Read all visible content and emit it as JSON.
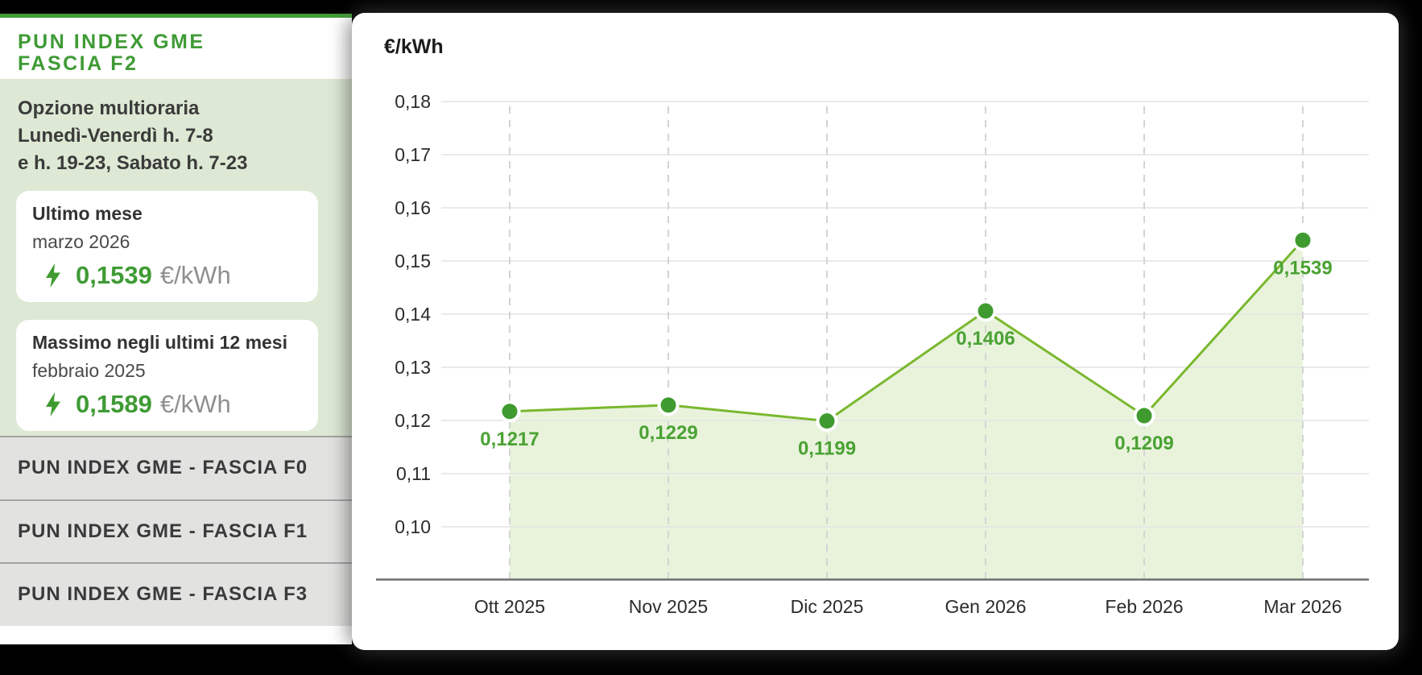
{
  "colors": {
    "accent_green": "#3f9b35",
    "label_green": "#4aa233",
    "line_green": "#7ab82f",
    "dot_green": "#3f9b2f",
    "area_fill": "rgba(122,184,47,0.17)",
    "panel_green": "#dde9d4",
    "text_dark": "#3b3b3b",
    "subtitle_gray": "#4a4a4a",
    "unit_gray": "#8f8f8f",
    "list_bg": "#e2e2e1",
    "list_separator": "#a3a3a3",
    "grid_gray": "#e3e3e3",
    "dash_gray": "#d4d4d4",
    "axis_gray": "#6e6e6e",
    "tick_dark": "#2c2c2c",
    "page_bg": "#000000",
    "card_bg": "#ffffff"
  },
  "sidebar": {
    "title_lines": [
      "PUN INDEX GME",
      "FASCIA F2"
    ],
    "option_lines": [
      "Opzione multioraria",
      "Lunedì-Venerdì h. 7-8",
      "e h. 19-23, Sabato h. 7-23"
    ],
    "cards": [
      {
        "title": "Ultimo mese",
        "subtitle": "marzo 2026",
        "value": "0,1539",
        "unit": "€/kWh",
        "icon": "lightning-bolt-icon"
      },
      {
        "title": "Massimo negli ultimi 12 mesi",
        "subtitle": "febbraio 2025",
        "value": "0,1589",
        "unit": "€/kWh",
        "icon": "lightning-bolt-icon"
      }
    ],
    "links": [
      {
        "label": "PUN INDEX GME - FASCIA F0"
      },
      {
        "label": "PUN INDEX GME - FASCIA F1"
      },
      {
        "label": "PUN INDEX GME - FASCIA F3"
      }
    ]
  },
  "chart": {
    "axis_title": "€/kWh"
  },
  "chart_data": {
    "type": "area",
    "series_name": "PUN INDEX GME - FASCIA F2",
    "x": [
      "Ott 2025",
      "Nov 2025",
      "Dic 2025",
      "Gen 2026",
      "Feb 2026",
      "Mar 2026"
    ],
    "values": [
      0.1217,
      0.1229,
      0.1199,
      0.1406,
      0.1209,
      0.1539
    ],
    "point_labels": [
      "0,1217",
      "0,1229",
      "0,1199",
      "0,1406",
      "0,1209",
      "0,1539"
    ],
    "ylabel": "€/kWh",
    "ylim": [
      0.1,
      0.18
    ],
    "yticks": [
      0.18,
      0.17,
      0.16,
      0.15,
      0.14,
      0.13,
      0.12,
      0.11,
      0.1
    ],
    "ytick_labels": [
      "0,18",
      "0,17",
      "0,16",
      "0,15",
      "0,14",
      "0,13",
      "0,12",
      "0,11",
      "0,10"
    ],
    "grid": {
      "horizontal": "solid",
      "vertical": "dashed-at-categories"
    },
    "legend": "none"
  }
}
